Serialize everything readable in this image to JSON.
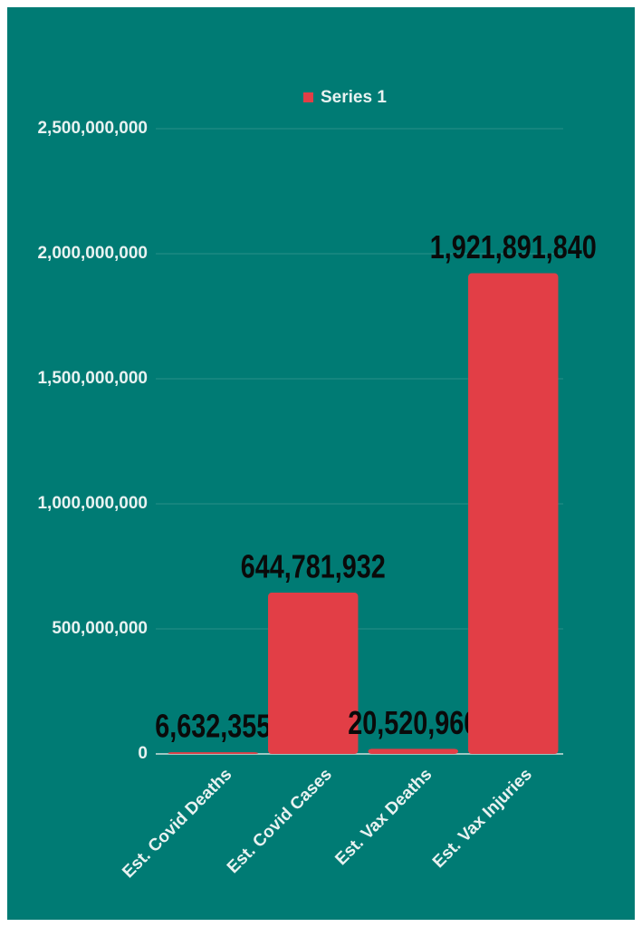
{
  "chart_data": {
    "type": "bar",
    "legend": {
      "position": "top"
    },
    "series": [
      {
        "name": "Series 1",
        "color": "#e23e46",
        "values": [
          6632355,
          644781932,
          20520960,
          1921891840
        ],
        "value_labels": [
          "6,632,355",
          "644,781,932",
          "20,520,960",
          "1,921,891,840"
        ]
      }
    ],
    "categories": [
      "Est. Covid Deaths",
      "Est. Covid Cases",
      "Est. Vax Deaths",
      "Est. Vax Injuries"
    ],
    "ylim": [
      0,
      2500000000
    ],
    "yticks": [
      0,
      {
        "value": 500000000,
        "label": "500,000,000"
      },
      {
        "value": 1000000000,
        "label": "1,000,000,000"
      },
      {
        "value": 1500000000,
        "label": "1,500,000,000"
      },
      {
        "value": 2000000000,
        "label": "2,000,000,000"
      },
      {
        "value": 2500000000,
        "label": "2,500,000,000"
      }
    ],
    "grid": true
  }
}
